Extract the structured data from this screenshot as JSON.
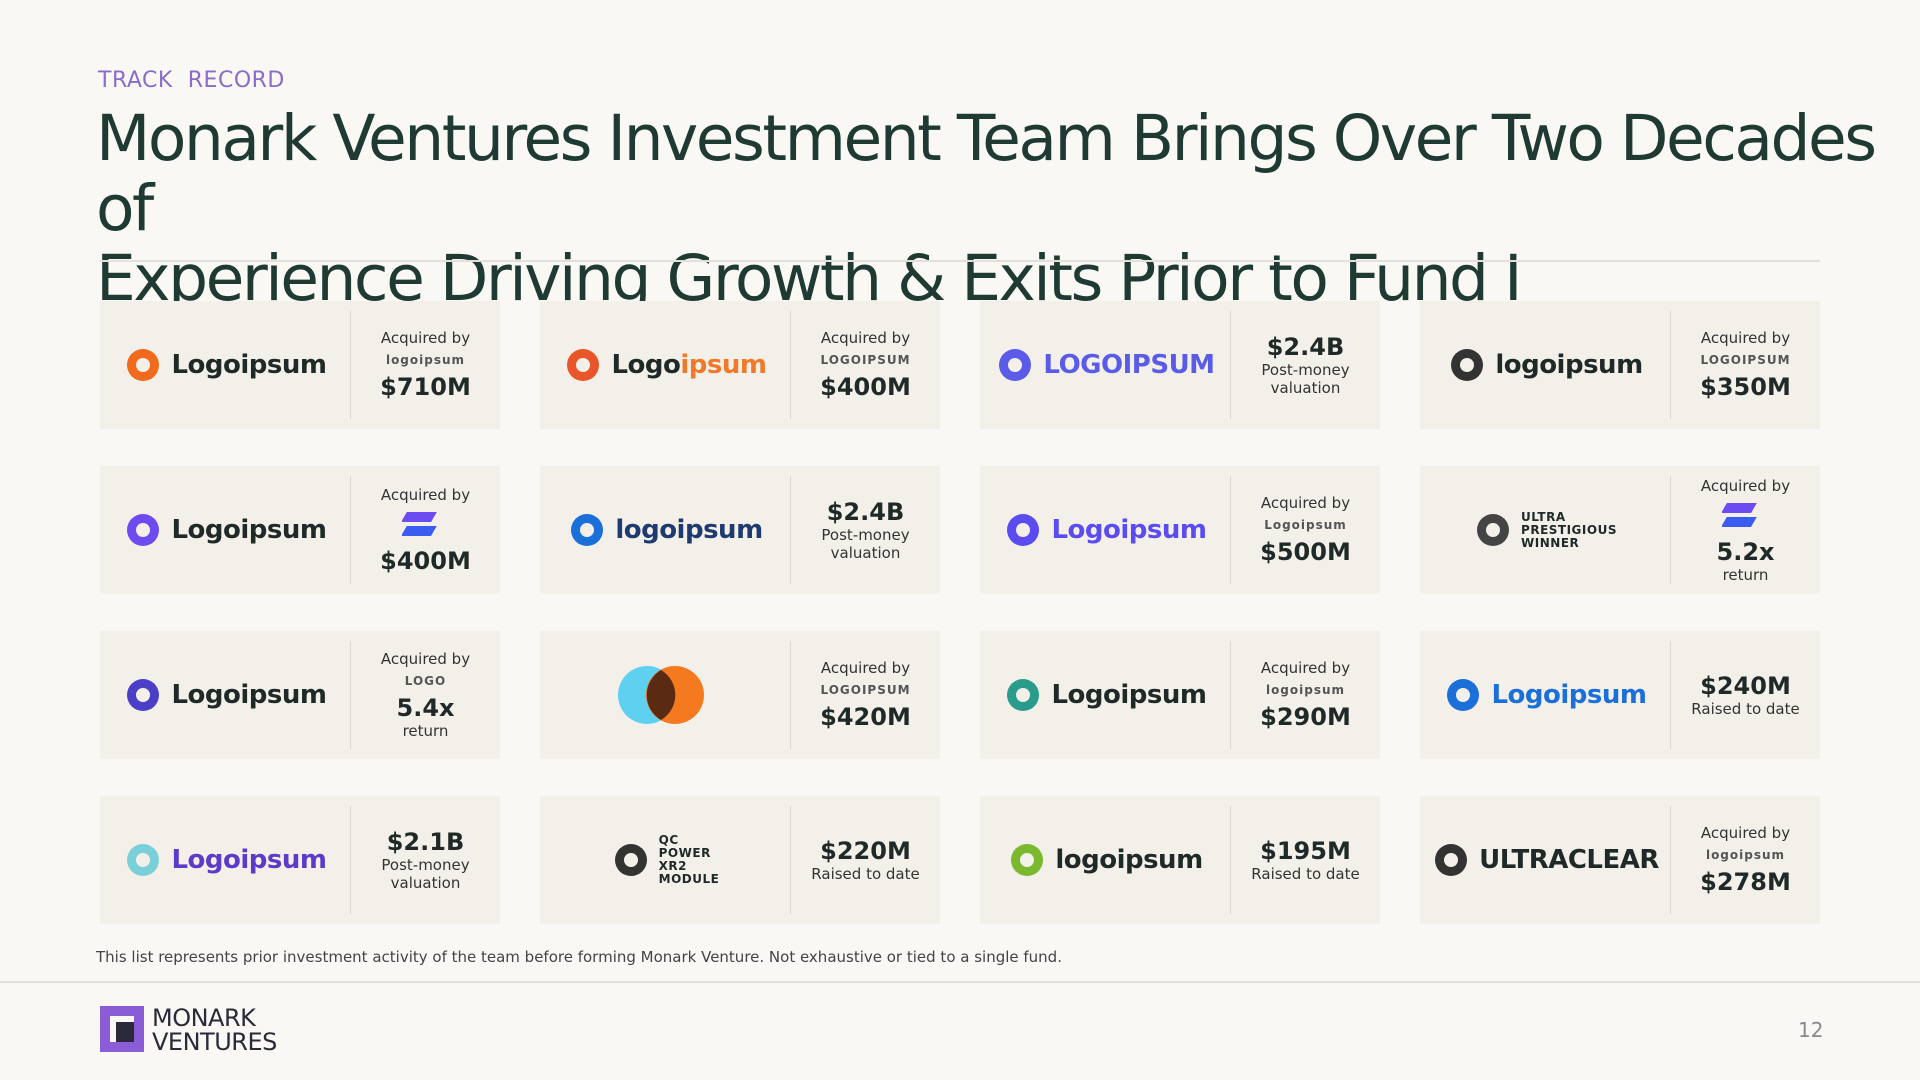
{
  "header": {
    "section": "TRACK  RECORD",
    "title_lines": [
      "Monark Ventures Investment Team Brings Over Two Decades of",
      "Experience Driving Growth & Exits Prior to Fund I"
    ]
  },
  "cards": [
    {
      "logo": [
        "Logoipsum"
      ],
      "label": "Acquired by",
      "acquirer": "logoipsum",
      "value": "$710M"
    },
    {
      "logo": [
        "Logo",
        "ipsum"
      ],
      "label": "Acquired by",
      "acquirer": "LOGOIPSUM",
      "value": "$400M"
    },
    {
      "logo": [
        "LOGOIPSUM"
      ],
      "value": "$2.4B",
      "note": "Post-money valuation"
    },
    {
      "logo": [
        "logoipsum"
      ],
      "label": "Acquired by",
      "acquirer": "LOGOIPSUM",
      "value": "$350M"
    },
    {
      "logo": [
        "Logoipsum"
      ],
      "label": "Acquired by",
      "value": "$400M"
    },
    {
      "logo": [
        "logoipsum"
      ],
      "value": "$2.4B",
      "note": "Post-money valuation"
    },
    {
      "logo": [
        "Logoipsum"
      ],
      "label": "Acquired by",
      "acquirer": "Logoipsum",
      "value": "$500M"
    },
    {
      "logo": [
        "ULTRA",
        "PRESTIGIOUS",
        "WINNER"
      ],
      "label": "Acquired by",
      "value": "5.2x",
      "note": "return"
    },
    {
      "logo": [
        "Logoipsum"
      ],
      "label": "Acquired by",
      "acquirer": "LOGO",
      "value": "5.4x",
      "note": "return"
    },
    {
      "logo": [],
      "label": "Acquired by",
      "acquirer": "LOGOIPSUM",
      "value": "$420M"
    },
    {
      "logo": [
        "Logoipsum"
      ],
      "label": "Acquired by",
      "acquirer": "logoipsum",
      "value": "$290M"
    },
    {
      "logo": [
        "Logoipsum"
      ],
      "value": "$240M",
      "note": "Raised to date"
    },
    {
      "logo": [
        "Logoipsum"
      ],
      "value": "$2.1B",
      "note": "Post-money valuation"
    },
    {
      "logo": [
        "QC",
        "POWER",
        "XR2",
        "MODULE"
      ],
      "value": "$220M",
      "note": "Raised to date"
    },
    {
      "logo": [
        "logo",
        "ipsum"
      ],
      "value": "$195M",
      "note": "Raised to date"
    },
    {
      "logo": [
        "ULTRA",
        "CLEAR"
      ],
      "label": "Acquired by",
      "acquirer": "logoipsum",
      "value": "$278M"
    }
  ],
  "footnote": "This list represents prior investment activity of the team before forming Monark Venture. Not exhaustive or tied to a single fund.",
  "footer": {
    "brand_lines": [
      "MONARK",
      "VENTURES"
    ],
    "page": "12"
  }
}
